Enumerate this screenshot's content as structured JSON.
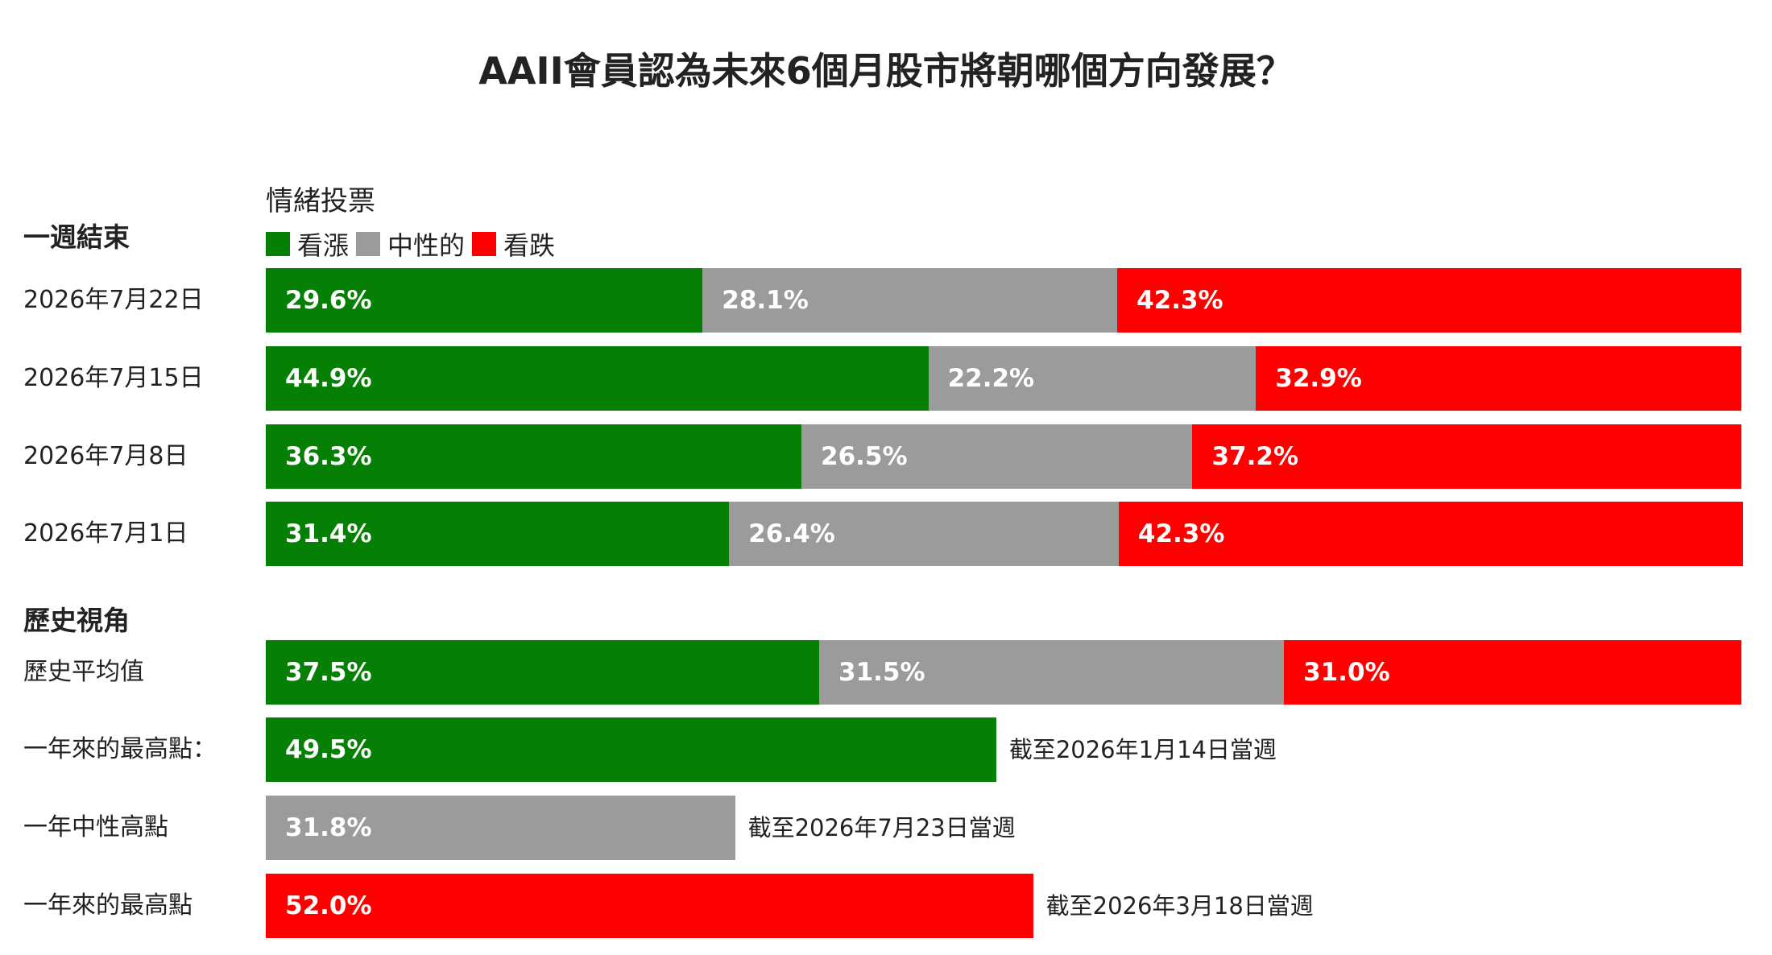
{
  "chart_data": {
    "type": "bar",
    "orientation": "horizontal",
    "stacked": true,
    "title": "AAII會員認為未來6個月股市將朝哪個方向發展？",
    "legend_title": "情緒投票",
    "legend_placement": "top-left",
    "series": [
      {
        "name": "看漲",
        "color": "#058005"
      },
      {
        "name": "中性的",
        "color": "#9b9b9b"
      },
      {
        "name": "看跌",
        "color": "#ff0000"
      }
    ],
    "xlim": [
      0,
      100
    ],
    "groups": [
      {
        "heading": "一週結束",
        "rows": [
          {
            "label": "2026年7月22日",
            "values": [
              29.6,
              28.1,
              42.3
            ],
            "labels": [
              "29.6%",
              "28.1%",
              "42.3%"
            ]
          },
          {
            "label": "2026年7月15日",
            "values": [
              44.9,
              22.2,
              32.9
            ],
            "labels": [
              "44.9%",
              "22.2%",
              "32.9%"
            ]
          },
          {
            "label": "2026年7月8日",
            "values": [
              36.3,
              26.5,
              37.2
            ],
            "labels": [
              "36.3%",
              "26.5%",
              "37.2%"
            ]
          },
          {
            "label": "2026年7月1日",
            "values": [
              31.4,
              26.4,
              42.3
            ],
            "labels": [
              "31.4%",
              "26.4%",
              "42.3%"
            ]
          }
        ]
      },
      {
        "heading": "歷史視角",
        "rows": [
          {
            "label": "歷史平均值",
            "values": [
              37.5,
              31.5,
              31.0
            ],
            "labels": [
              "37.5%",
              "31.5%",
              "31.0%"
            ]
          },
          {
            "label": "一年來的最高點：",
            "series_index": 0,
            "value": 49.5,
            "value_label": "49.5%",
            "note": "截至2026年1月14日當週"
          },
          {
            "label": "一年中性高點",
            "series_index": 1,
            "value": 31.8,
            "value_label": "31.8%",
            "note": "截至2026年7月23日當週"
          },
          {
            "label": "一年來的最高點",
            "series_index": 2,
            "value": 52.0,
            "value_label": "52.0%",
            "note": "截至2026年3月18日當週"
          }
        ]
      }
    ]
  }
}
